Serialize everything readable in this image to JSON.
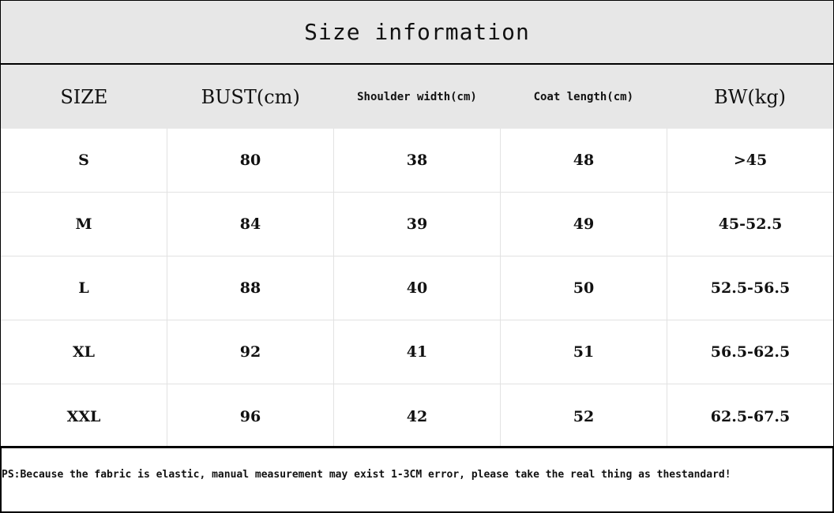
{
  "title": "Size information",
  "columns": [
    "SIZE",
    "BUST(cm)",
    "Shoulder width(cm)",
    "Coat length(cm)",
    "BW(kg)"
  ],
  "rows": [
    [
      "S",
      "80",
      "38",
      "48",
      ">45"
    ],
    [
      "M",
      "84",
      "39",
      "49",
      "45-52.5"
    ],
    [
      "L",
      "88",
      "40",
      "50",
      "52.5-56.5"
    ],
    [
      "XL",
      "92",
      "41",
      "51",
      "56.5-62.5"
    ],
    [
      "XXL",
      "96",
      "42",
      "52",
      "62.5-67.5"
    ]
  ],
  "note": "PS:Because the fabric is elastic, manual measurement may exist 1-3CM error, please take the real thing as thestandard!"
}
